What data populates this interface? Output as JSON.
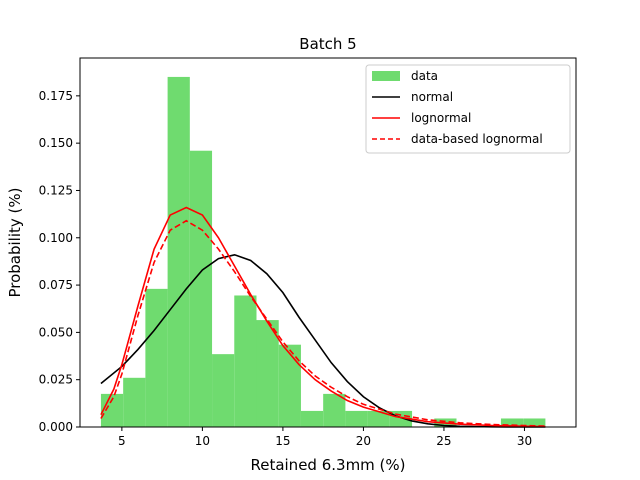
{
  "chart_data": {
    "type": "bar",
    "title": "Batch 5",
    "xlabel": "Retained 6.3mm (%)",
    "ylabel": "Probability (%)",
    "xlim": [
      2.4,
      33.2
    ],
    "ylim": [
      0.0,
      0.195
    ],
    "xticks": [
      5,
      10,
      15,
      20,
      25,
      30
    ],
    "yticks": [
      0.0,
      0.025,
      0.05,
      0.075,
      0.1,
      0.125,
      0.15,
      0.175
    ],
    "xtick_labels": [
      "5",
      "10",
      "15",
      "20",
      "25",
      "30"
    ],
    "ytick_labels": [
      "0.000",
      "0.025",
      "0.050",
      "0.075",
      "0.100",
      "0.125",
      "0.150",
      "0.175"
    ],
    "legend_position": "top-right",
    "grid": false,
    "histogram": {
      "name": "data",
      "color": "#6fdb6f",
      "bin_edges": [
        3.7,
        5.08,
        6.46,
        7.84,
        9.22,
        10.6,
        11.98,
        13.36,
        14.74,
        16.12,
        17.5,
        18.88,
        20.26,
        21.64,
        23.02,
        24.4,
        25.78,
        27.16,
        28.54,
        29.92,
        31.3
      ],
      "values": [
        0.0175,
        0.026,
        0.073,
        0.185,
        0.146,
        0.0385,
        0.0695,
        0.0565,
        0.0435,
        0.0085,
        0.0175,
        0.0085,
        0.0085,
        0.0085,
        0.0,
        0.0045,
        0.0,
        0.0,
        0.0045,
        0.0045
      ]
    },
    "lines": [
      {
        "name": "normal",
        "color": "#000000",
        "dash": "solid",
        "x": [
          3.7,
          5,
          6,
          7,
          8,
          9,
          10,
          11,
          12,
          13,
          14,
          15,
          16,
          17,
          18,
          19,
          20,
          21,
          22,
          23,
          24,
          25,
          26,
          27,
          28,
          29,
          30,
          31.3
        ],
        "y": [
          0.023,
          0.032,
          0.041,
          0.051,
          0.062,
          0.073,
          0.083,
          0.089,
          0.091,
          0.088,
          0.081,
          0.071,
          0.058,
          0.046,
          0.034,
          0.024,
          0.016,
          0.0101,
          0.0059,
          0.0032,
          0.0017,
          0.0008,
          0.0004,
          0.0002,
          0.0001,
          0.0,
          0.0,
          0.0
        ]
      },
      {
        "name": "lognormal",
        "color": "#ff0000",
        "dash": "solid",
        "x": [
          3.7,
          4.5,
          5,
          6,
          7,
          8,
          9,
          10,
          11,
          12,
          13,
          14,
          15,
          16,
          17,
          18,
          19,
          20,
          22,
          24,
          26,
          28,
          30,
          31.3
        ],
        "y": [
          0.0065,
          0.02,
          0.033,
          0.064,
          0.094,
          0.112,
          0.116,
          0.112,
          0.1,
          0.085,
          0.07,
          0.056,
          0.043,
          0.033,
          0.025,
          0.019,
          0.014,
          0.0105,
          0.0055,
          0.0028,
          0.0015,
          0.0008,
          0.0004,
          0.0002
        ]
      },
      {
        "name": "data-based lognormal",
        "color": "#ff0000",
        "dash": "dashed",
        "x": [
          3.7,
          4.5,
          5,
          6,
          7,
          8,
          9,
          10,
          11,
          12,
          13,
          14,
          15,
          16,
          17,
          18,
          19,
          20,
          22,
          24,
          26,
          28,
          30,
          31.3
        ],
        "y": [
          0.0045,
          0.016,
          0.028,
          0.059,
          0.087,
          0.104,
          0.109,
          0.104,
          0.094,
          0.082,
          0.069,
          0.057,
          0.045,
          0.035,
          0.027,
          0.021,
          0.016,
          0.012,
          0.0068,
          0.0038,
          0.0022,
          0.0013,
          0.0008,
          0.0005
        ]
      }
    ]
  }
}
